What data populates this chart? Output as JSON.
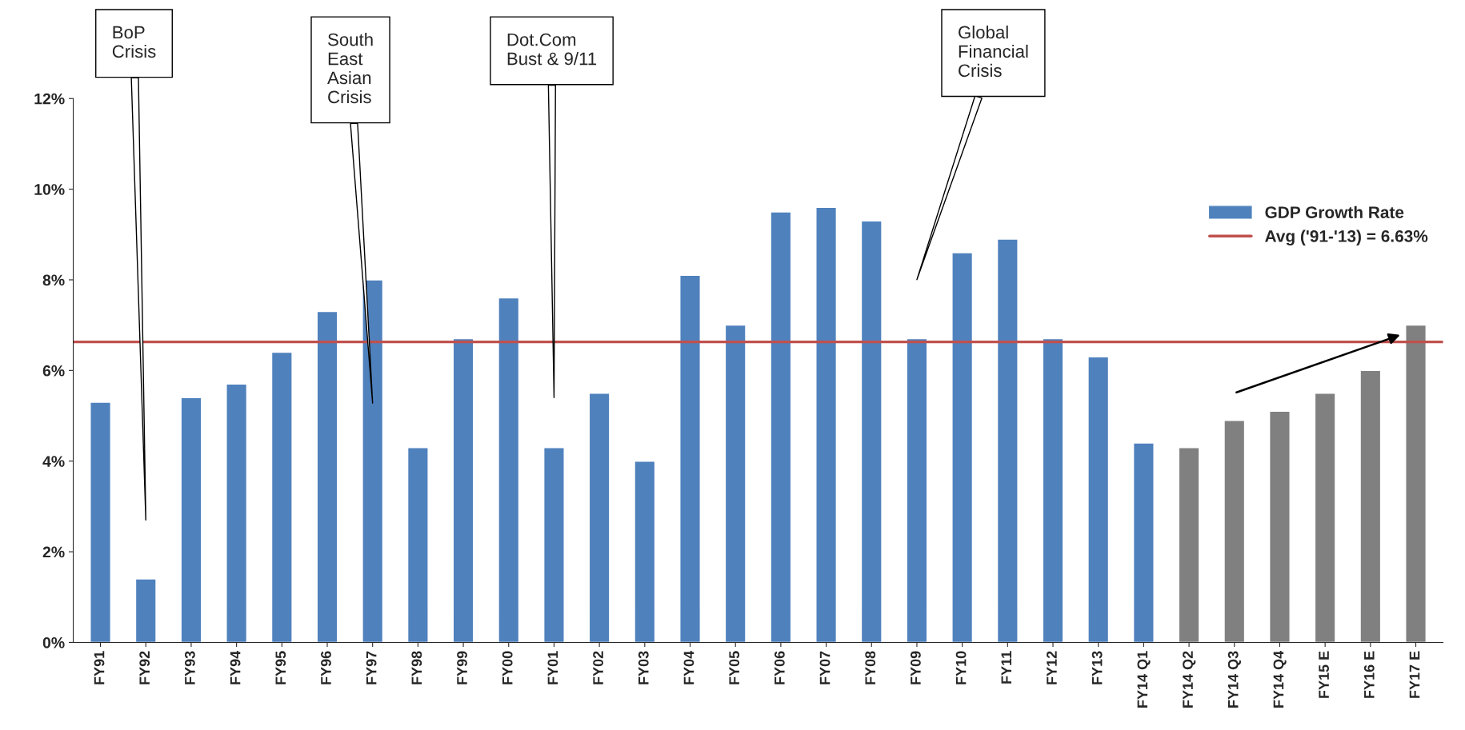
{
  "chart_data": {
    "type": "bar",
    "categories": [
      "FY91",
      "FY92",
      "FY93",
      "FY94",
      "FY95",
      "FY96",
      "FY97",
      "FY98",
      "FY99",
      "FY00",
      "FY01",
      "FY02",
      "FY03",
      "FY04",
      "FY05",
      "FY06",
      "FY07",
      "FY08",
      "FY09",
      "FY10",
      "FY11",
      "FY12",
      "FY13",
      "FY14 Q1",
      "FY14 Q2",
      "FY14 Q3",
      "FY14 Q4",
      "FY15 E",
      "FY16 E",
      "FY17 E"
    ],
    "series": [
      {
        "name": "GDP Growth Rate",
        "color": "#4f81bd",
        "colors": [
          "#4f81bd",
          "#4f81bd",
          "#4f81bd",
          "#4f81bd",
          "#4f81bd",
          "#4f81bd",
          "#4f81bd",
          "#4f81bd",
          "#4f81bd",
          "#4f81bd",
          "#4f81bd",
          "#4f81bd",
          "#4f81bd",
          "#4f81bd",
          "#4f81bd",
          "#4f81bd",
          "#4f81bd",
          "#4f81bd",
          "#4f81bd",
          "#4f81bd",
          "#4f81bd",
          "#4f81bd",
          "#4f81bd",
          "#4f81bd",
          "#808080",
          "#808080",
          "#808080",
          "#808080",
          "#808080",
          "#808080"
        ],
        "values": [
          5.3,
          1.4,
          5.4,
          5.7,
          6.4,
          7.3,
          8.0,
          4.3,
          6.7,
          7.6,
          4.3,
          5.5,
          4.0,
          8.1,
          7.0,
          9.5,
          9.6,
          9.3,
          6.7,
          8.6,
          8.9,
          6.7,
          6.3,
          4.4,
          4.3,
          4.9,
          5.1,
          5.5,
          6.0,
          7.0
        ]
      }
    ],
    "ylim": [
      0,
      12
    ],
    "yticks": [
      {
        "value": 0,
        "label": "0%"
      },
      {
        "value": 2,
        "label": "2%"
      },
      {
        "value": 4,
        "label": "4%"
      },
      {
        "value": 6,
        "label": "6%"
      },
      {
        "value": 8,
        "label": "8%"
      },
      {
        "value": 10,
        "label": "10%"
      },
      {
        "value": 12,
        "label": "12%"
      }
    ],
    "ref_lines": [
      {
        "axis": "y",
        "value": 6.63,
        "label": "Avg ('91-'13) = 6.63%",
        "color": "#c0504d"
      }
    ],
    "annotations": [
      "BoP\nCrisis",
      "South\nEast\nAsian\nCrisis",
      "Dot.Com\nBust & 9/11",
      "Global\nFinancial\nCrisis"
    ],
    "grid": false,
    "legend": "top right"
  }
}
